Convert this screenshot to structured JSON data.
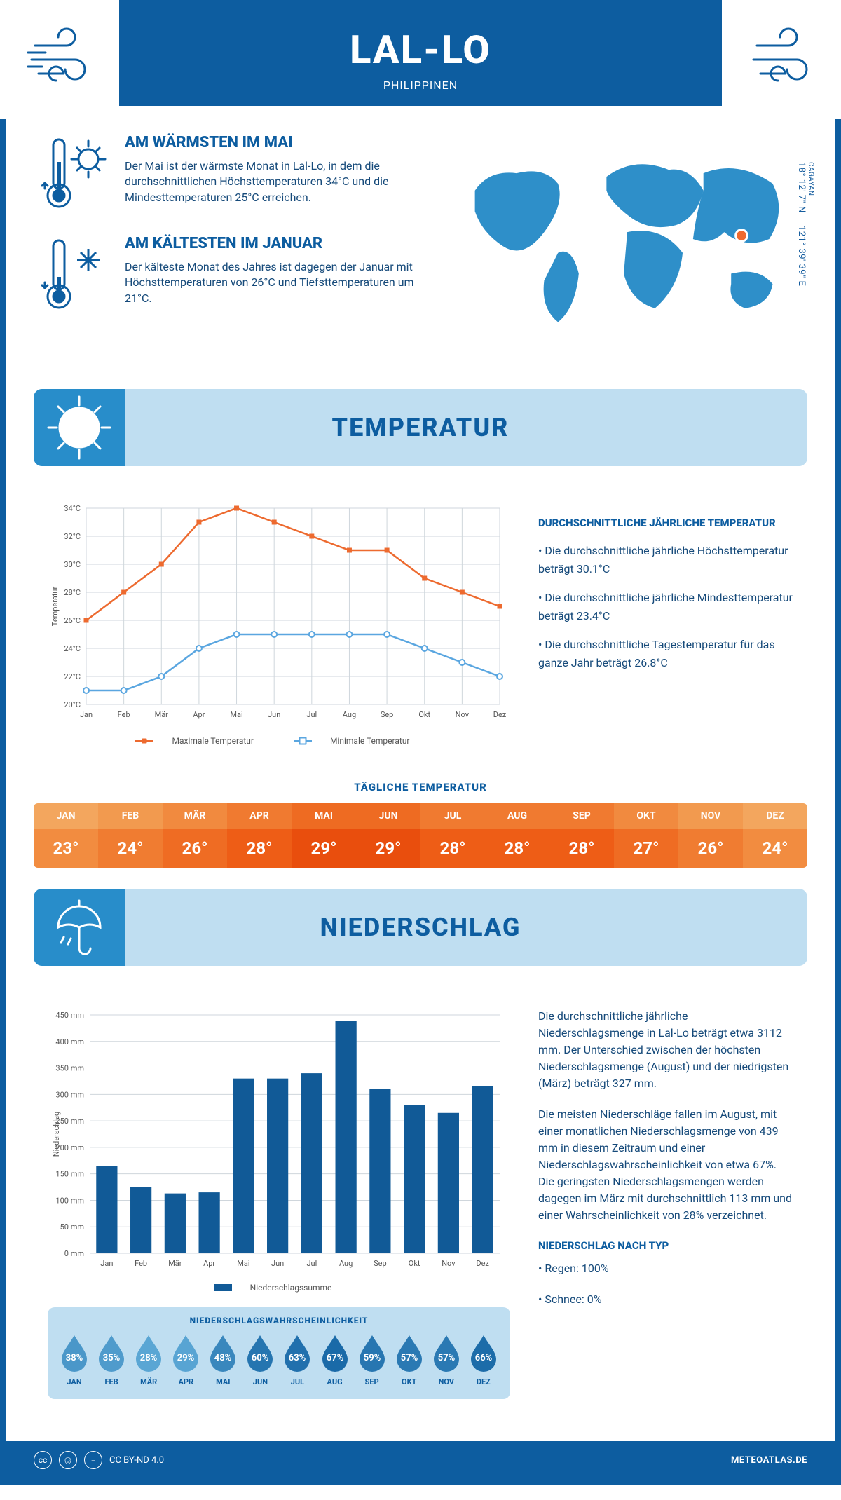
{
  "header": {
    "title": "LAL-LO",
    "country": "PHILIPPINEN"
  },
  "coords": {
    "region": "CAGAYAN",
    "lat": "18° 12' 7\" N",
    "lon": "121° 39' 39\" E"
  },
  "warmest": {
    "heading": "AM WÄRMSTEN IM MAI",
    "text": "Der Mai ist der wärmste Monat in Lal-Lo, in dem die durchschnittlichen Höchsttemperaturen 34°C und die Mindesttemperaturen 25°C erreichen."
  },
  "coldest": {
    "heading": "AM KÄLTESTEN IM JANUAR",
    "text": "Der kälteste Monat des Jahres ist dagegen der Januar mit Höchsttemperaturen von 26°C und Tiefsttemperaturen um 21°C."
  },
  "sectionTemp": "TEMPERATUR",
  "sectionPrecip": "NIEDERSCHLAG",
  "months": [
    "Jan",
    "Feb",
    "Mär",
    "Apr",
    "Mai",
    "Jun",
    "Jul",
    "Aug",
    "Sep",
    "Okt",
    "Nov",
    "Dez"
  ],
  "monthsUpper": [
    "JAN",
    "FEB",
    "MÄR",
    "APR",
    "MAI",
    "JUN",
    "JUL",
    "AUG",
    "SEP",
    "OKT",
    "NOV",
    "DEZ"
  ],
  "tempChart": {
    "type": "line",
    "xlim": [
      0,
      11
    ],
    "ylim": [
      20,
      34
    ],
    "ytick_step": 2,
    "ylabel": "Temperatur",
    "max": {
      "label": "Maximale Temperatur",
      "color": "#ed6a2f",
      "values": [
        26,
        28,
        30,
        33,
        34,
        33,
        32,
        31,
        31,
        29,
        28,
        27
      ]
    },
    "min": {
      "label": "Minimale Temperatur",
      "color": "#5aa6e0",
      "values": [
        21,
        21,
        22,
        24,
        25,
        25,
        25,
        25,
        25,
        24,
        23,
        22
      ]
    },
    "grid_color": "#cfd6dc",
    "bg": "#ffffff"
  },
  "tempFacts": {
    "heading": "DURCHSCHNITTLICHE JÄHRLICHE TEMPERATUR",
    "items": [
      "• Die durchschnittliche jährliche Höchsttemperatur beträgt 30.1°C",
      "• Die durchschnittliche jährliche Mindesttemperatur beträgt 23.4°C",
      "• Die durchschnittliche Tagestemperatur für das ganze Jahr beträgt 26.8°C"
    ]
  },
  "dailyTemp": {
    "heading": "TÄGLICHE TEMPERATUR",
    "values": [
      23,
      24,
      26,
      28,
      29,
      29,
      28,
      28,
      28,
      27,
      26,
      24
    ],
    "headerGradient": [
      "#f3a65e",
      "#f29a4f",
      "#f18a3f",
      "#f07a30",
      "#ee6b22",
      "#ee6b22",
      "#f07a30",
      "#f07a30",
      "#f07a30",
      "#f18a3f",
      "#f29a4f",
      "#f3a65e"
    ],
    "valueGradient": [
      "#f28c40",
      "#f07c31",
      "#ef6c23",
      "#ee5d16",
      "#e94e0d",
      "#e94e0d",
      "#ee5d16",
      "#ee5d16",
      "#ee5d16",
      "#ef6c23",
      "#f07c31",
      "#f28c40"
    ]
  },
  "precipChart": {
    "type": "bar",
    "ylim": [
      0,
      450
    ],
    "ytick_step": 50,
    "ylabel": "Niederschlag",
    "values": [
      165,
      125,
      113,
      115,
      330,
      330,
      340,
      439,
      310,
      280,
      265,
      315
    ],
    "bar_color": "#115a97",
    "grid_color": "#cfd6dc",
    "legend": "Niederschlagssumme"
  },
  "precipText": [
    "Die durchschnittliche jährliche Niederschlagsmenge in Lal-Lo beträgt etwa 3112 mm. Der Unterschied zwischen der höchsten Niederschlagsmenge (August) und der niedrigsten (März) beträgt 327 mm.",
    "Die meisten Niederschläge fallen im August, mit einer monatlichen Niederschlagsmenge von 439 mm in diesem Zeitraum und einer Niederschlagswahrscheinlichkeit von etwa 67%. Die geringsten Niederschlagsmengen werden dagegen im März mit durchschnittlich 113 mm und einer Wahrscheinlichkeit von 28% verzeichnet."
  ],
  "precipByType": {
    "heading": "NIEDERSCHLAG NACH TYP",
    "items": [
      "• Regen: 100%",
      "• Schnee: 0%"
    ]
  },
  "precipProb": {
    "heading": "NIEDERSCHLAGSWAHRSCHEINLICHKEIT",
    "values": [
      38,
      35,
      28,
      29,
      48,
      60,
      63,
      67,
      59,
      57,
      57,
      66
    ],
    "color_low": "#5aa6d4",
    "color_high": "#1a6aa8"
  },
  "footer": {
    "license": "CC BY-ND 4.0",
    "brand": "METEOATLAS.DE"
  },
  "colors": {
    "primary": "#0d5da0",
    "light": "#bfdef1",
    "mid": "#288dca",
    "text": "#164a7a"
  }
}
